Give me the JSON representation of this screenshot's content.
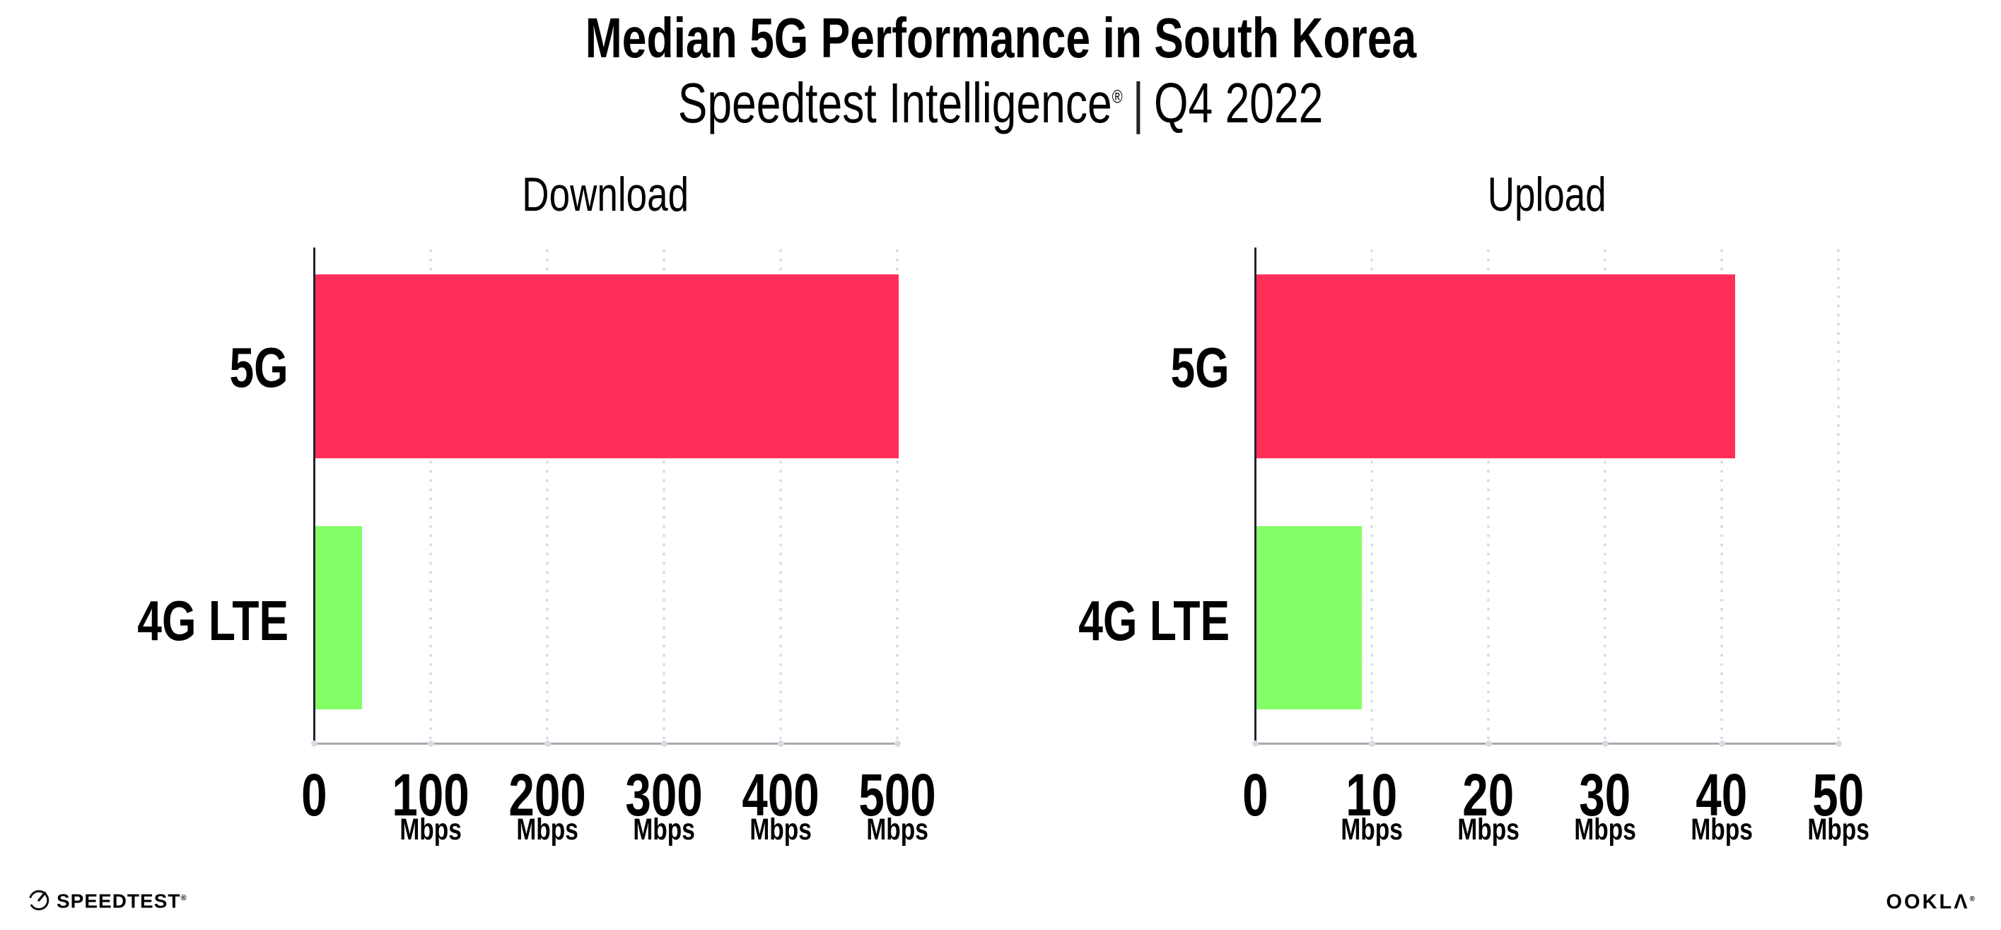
{
  "header": {
    "title": "Median 5G Performance in South Korea",
    "subtitle_brand": "Speedtest Intelligence",
    "subtitle_reg": "®",
    "subtitle_sep": "|",
    "subtitle_period": "Q4 2022"
  },
  "chart_data": [
    {
      "type": "bar",
      "orientation": "horizontal",
      "title": "Download",
      "categories": [
        "5G",
        "4G LTE"
      ],
      "values": [
        500,
        40
      ],
      "unit": "Mbps",
      "xlim": [
        0,
        500
      ],
      "xticks": [
        "0",
        "100",
        "200",
        "300",
        "400",
        "500"
      ],
      "bar_colors": [
        "#FF2E59",
        "#82FF66"
      ],
      "legend": "none",
      "grid": "dotted vertical gridlines at each tick"
    },
    {
      "type": "bar",
      "orientation": "horizontal",
      "title": "Upload",
      "categories": [
        "5G",
        "4G LTE"
      ],
      "values": [
        41,
        9
      ],
      "unit": "Mbps",
      "xlim": [
        0,
        50
      ],
      "xticks": [
        "0",
        "10",
        "20",
        "30",
        "40",
        "50"
      ],
      "bar_colors": [
        "#FF2E59",
        "#82FF66"
      ],
      "legend": "none",
      "grid": "dotted vertical gridlines at each tick"
    }
  ],
  "footer": {
    "speedtest_wordmark": "SPEEDTEST",
    "speedtest_reg": "®",
    "ookla_wordmark": "OOKLΛ",
    "ookla_reg": "®"
  },
  "colors": {
    "bar_5g": "#FF2E59",
    "bar_4g": "#82FF66",
    "grid_dot": "#D9DBE4",
    "axis_y": "#23232E",
    "axis_x": "#A9A9AF",
    "text": "#000000"
  }
}
